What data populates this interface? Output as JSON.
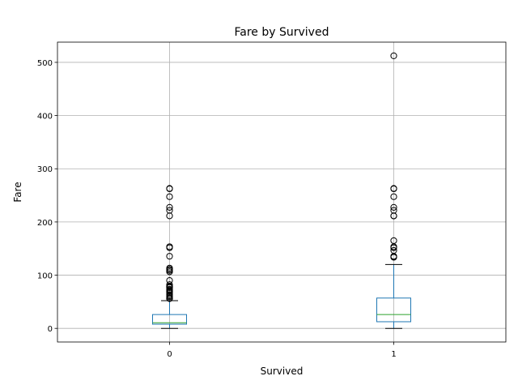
{
  "chart_data": {
    "type": "boxplot",
    "title": "Fare by Survived",
    "xlabel": "Survived",
    "ylabel": "Fare",
    "categories": [
      "0",
      "1"
    ],
    "ylim": [
      -25.6,
      538
    ],
    "yticks": [
      0,
      100,
      200,
      300,
      400,
      500
    ],
    "grid": true,
    "boxes": [
      {
        "category": "0",
        "whisker_low": 0,
        "q1": 7.85,
        "median": 10.5,
        "q3": 26,
        "whisker_high": 52,
        "fliers": [
          55.9,
          56.5,
          57,
          59.4,
          61.2,
          63.4,
          66.6,
          69.1,
          69.6,
          71.3,
          73.5,
          76.7,
          77.3,
          78.9,
          79.2,
          82.2,
          90,
          106.4,
          108.9,
          110.9,
          113.3,
          135.6,
          151.6,
          153.5,
          211.5,
          221.8,
          227.5,
          247.5,
          262.4,
          263
        ]
      },
      {
        "category": "1",
        "whisker_low": 0,
        "q1": 12.5,
        "median": 26,
        "q3": 57,
        "whisker_high": 120,
        "fliers": [
          133.7,
          134.5,
          135.6,
          146.5,
          151.6,
          153.5,
          164.9,
          211.3,
          211.5,
          221.8,
          227.5,
          247.5,
          262.4,
          263,
          512.3
        ]
      }
    ]
  },
  "colors": {
    "box": "#1f77b4",
    "median": "#2ca02c",
    "whisker": "#000000",
    "grid": "#b0b0b0",
    "axes": "#000000"
  }
}
